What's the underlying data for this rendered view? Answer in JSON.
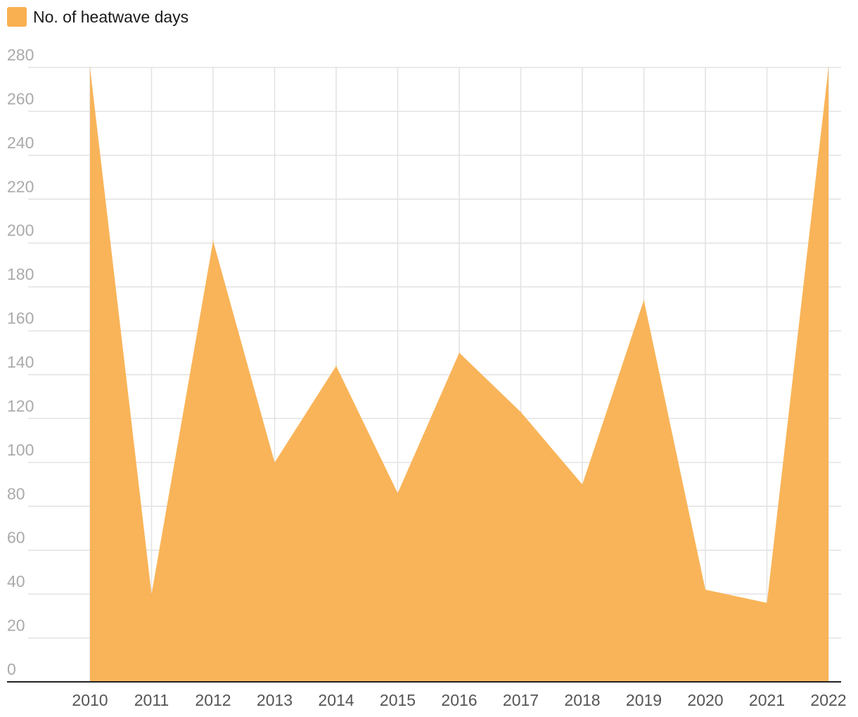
{
  "chart_data": {
    "type": "area",
    "title": "",
    "xlabel": "",
    "ylabel": "",
    "legend_position": "top-left",
    "grid": true,
    "categories": [
      "2010",
      "2011",
      "2012",
      "2013",
      "2014",
      "2015",
      "2016",
      "2017",
      "2018",
      "2019",
      "2020",
      "2021",
      "2022"
    ],
    "series": [
      {
        "name": "No. of heatwave days",
        "color": "#F9B050",
        "values": [
          280,
          40,
          201,
          100,
          144,
          86,
          150,
          123,
          90,
          174,
          42,
          36,
          280
        ]
      }
    ],
    "ylim": [
      0,
      280
    ],
    "yticks": [
      "0",
      "20",
      "40",
      "60",
      "80",
      "100",
      "120",
      "140",
      "160",
      "180",
      "200",
      "220",
      "240",
      "260",
      "280"
    ]
  }
}
